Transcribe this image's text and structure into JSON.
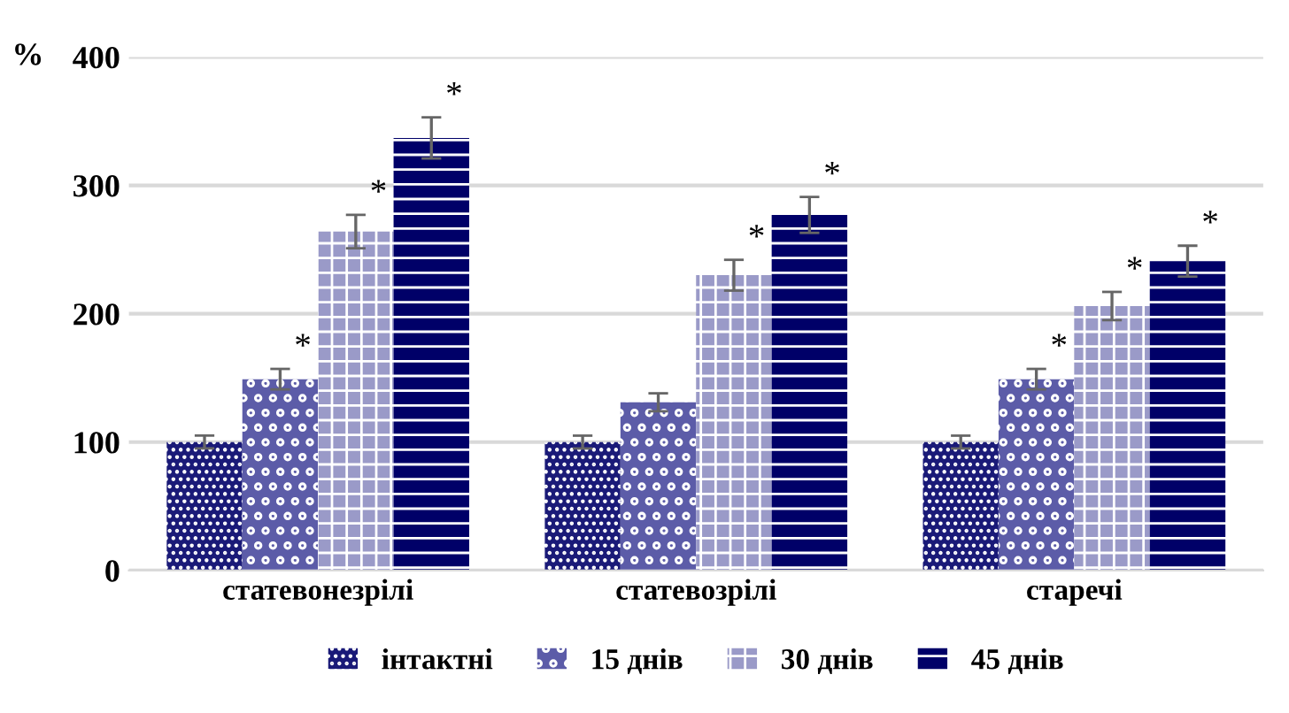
{
  "chart_data": {
    "type": "bar",
    "ylabel": "%",
    "categories": [
      "статевонезрілі",
      "статевозрілі",
      "старечі"
    ],
    "series": [
      {
        "name": "інтактні",
        "color": "#1a1a78",
        "values": [
          100,
          100,
          100
        ],
        "errors": [
          5,
          5,
          5
        ]
      },
      {
        "name": "15 днів",
        "color": "#5c5ca8",
        "values": [
          149,
          131,
          149
        ],
        "errors": [
          8,
          7,
          8
        ],
        "value_labels": [
          "*",
          null,
          "*"
        ]
      },
      {
        "name": "30 днів",
        "color": "#9a9ac8",
        "values": [
          264,
          230,
          206
        ],
        "errors": [
          13,
          12,
          11
        ],
        "value_labels": [
          "*",
          "*",
          "*"
        ]
      },
      {
        "name": "45 днів",
        "color": "#000068",
        "values": [
          337,
          277,
          241
        ],
        "errors": [
          16,
          14,
          12
        ],
        "value_labels": [
          "*",
          "*",
          "*"
        ]
      }
    ],
    "ylim": [
      0,
      400
    ],
    "yticks": [
      0,
      100,
      200,
      300,
      400
    ],
    "grid": "y",
    "legend": "bottom"
  }
}
